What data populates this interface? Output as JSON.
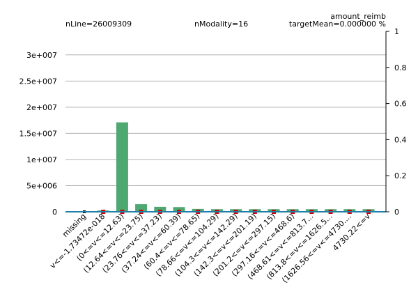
{
  "header": {
    "n_line": "nLine=26009309",
    "n_modality": "nModality=16",
    "variable": "amount_reimb",
    "target_mean": "targetMean=0.000000  %"
  },
  "colors": {
    "bar": "#4ea872",
    "marker": "#cc0000",
    "grid": "#b0b0b0",
    "axis": "#000000",
    "baseline": "#1f7fa8"
  },
  "chart_data": {
    "type": "bar",
    "title": "",
    "xlabel": "",
    "ylabel": "",
    "ylim": [
      0,
      34500000
    ],
    "y2lim": [
      0,
      1
    ],
    "grid": true,
    "legend": "none",
    "y_ticks": [
      {
        "value": 0,
        "label": "0"
      },
      {
        "value": 5000000,
        "label": "5e+006"
      },
      {
        "value": 10000000,
        "label": "1e+007"
      },
      {
        "value": 15000000,
        "label": "1.5e+007"
      },
      {
        "value": 20000000,
        "label": "2e+007"
      },
      {
        "value": 25000000,
        "label": "2.5e+007"
      },
      {
        "value": 30000000,
        "label": "3e+007"
      }
    ],
    "y2_ticks": [
      {
        "value": 0,
        "label": "0"
      },
      {
        "value": 0.2,
        "label": "0.2"
      },
      {
        "value": 0.4,
        "label": "0.4"
      },
      {
        "value": 0.6,
        "label": "0.6"
      },
      {
        "value": 0.8,
        "label": "0.8"
      },
      {
        "value": 1,
        "label": "1"
      }
    ],
    "categories": [
      "missing",
      "v<=-1.73472e-018",
      "(0<=v<=12.63)",
      "(12.64<=v<=23.75)",
      "(23.76<=v<=37.23)",
      "(37.24<=v<=60.39)",
      "(60.4<=v<=78.65)",
      "(78.66<=v<=104.29)",
      "(104.3<=v<=142.29)",
      "(142.3<=v<=201.19)",
      "(201.2<=v<=297.15)",
      "(297.16<=v<=468.6)",
      "(468.61<=v<=813.7...",
      "(813.8<=v<=1626.5...",
      "(1626.56<=v<=4730....",
      "4730.22<=v"
    ],
    "series": [
      {
        "values": [
          0,
          250000,
          17100000,
          1450000,
          950000,
          900000,
          550000,
          500000,
          500000,
          500000,
          500000,
          500000,
          500000,
          500000,
          500000,
          500000
        ]
      },
      {
        "axis": "right",
        "values": [
          0,
          0,
          0,
          0,
          0,
          0,
          0,
          0,
          0,
          0,
          0,
          0,
          0,
          0,
          0,
          0
        ]
      }
    ]
  }
}
